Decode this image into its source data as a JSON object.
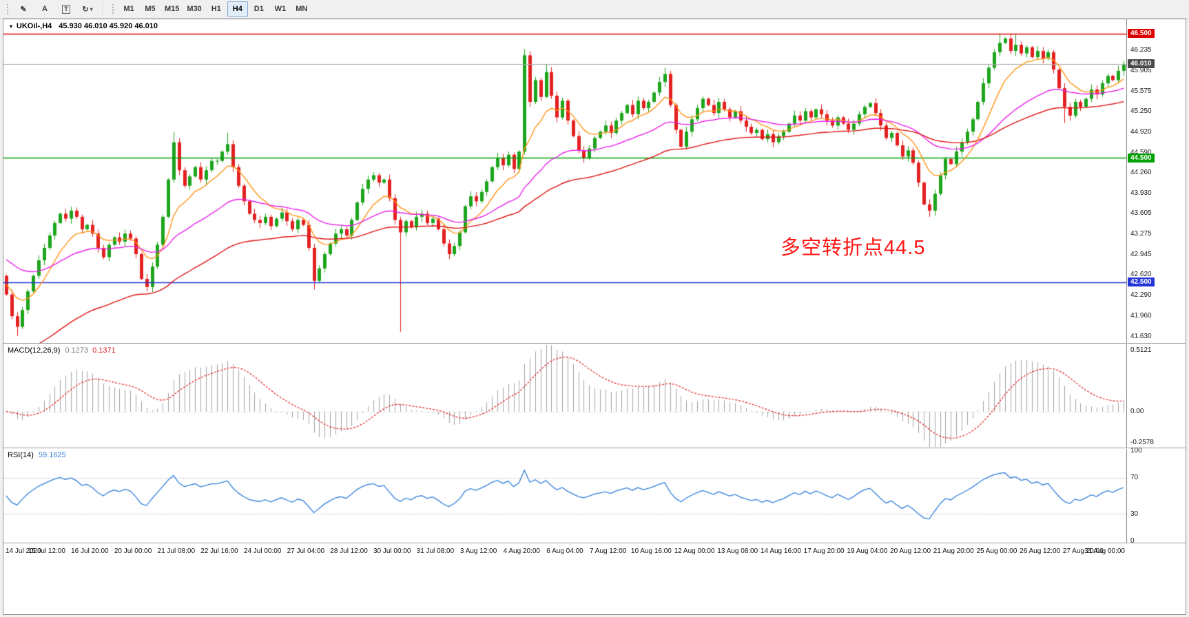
{
  "toolbar": {
    "tools": [
      {
        "id": "draw-tool",
        "icon_name": "pencil-icon",
        "glyph": "✎"
      },
      {
        "id": "text-tool",
        "icon_name": "text-label-icon",
        "glyph": "A"
      },
      {
        "id": "text-frame-tool",
        "icon_name": "text-frame-icon",
        "glyph": "T",
        "boxed": true
      },
      {
        "id": "cycle-tool",
        "icon_name": "cycle-icon",
        "glyph": "↻",
        "caret": "▾"
      }
    ],
    "timeframes": [
      "M1",
      "M5",
      "M15",
      "M30",
      "H1",
      "H4",
      "D1",
      "W1",
      "MN"
    ],
    "active_timeframe": "H4"
  },
  "chart": {
    "symbol": "UKOil-,H4",
    "ohlc": "45.930 46.010 45.920 46.010",
    "annotation": {
      "text": "多空转折点44.5",
      "color": "#ff1414"
    }
  },
  "price_axis": {
    "min": 41.52,
    "max": 46.73,
    "ticks": [
      46.235,
      45.905,
      45.575,
      45.25,
      44.92,
      44.59,
      44.26,
      43.93,
      43.605,
      43.275,
      42.945,
      42.62,
      42.29,
      41.96,
      41.63
    ],
    "special": [
      {
        "value": 46.5,
        "label": "46.500",
        "bg": "#dd0000",
        "fg": "#ffffff",
        "line": "#dd0000",
        "lw": 1.6
      },
      {
        "value": 46.01,
        "label": "46.010",
        "bg": "#4a4a4a",
        "fg": "#ffffff",
        "line": "#a8a8a8",
        "lw": 1.0
      },
      {
        "value": 44.5,
        "label": "44.500",
        "bg": "#00a000",
        "fg": "#ffffff",
        "line": "#00a000",
        "lw": 1.6
      },
      {
        "value": 42.5,
        "label": "42.500",
        "bg": "#2335d8",
        "fg": "#ffffff",
        "line": "#2335d8",
        "lw": 1.6
      }
    ]
  },
  "time_axis": {
    "bars_per_label": 8,
    "labels": [
      "14 Jul 2020",
      "15 Jul 12:00",
      "16 Jul 20:00",
      "20 Jul 00:00",
      "21 Jul 08:00",
      "22 Jul 16:00",
      "24 Jul 00:00",
      "27 Jul 04:00",
      "28 Jul 12:00",
      "30 Jul 00:00",
      "31 Jul 08:00",
      "3 Aug 12:00",
      "4 Aug 20:00",
      "6 Aug 04:00",
      "7 Aug 12:00",
      "10 Aug 16:00",
      "12 Aug 00:00",
      "13 Aug 08:00",
      "14 Aug 16:00",
      "17 Aug 20:00",
      "19 Aug 04:00",
      "20 Aug 12:00",
      "21 Aug 20:00",
      "25 Aug 00:00",
      "26 Aug 12:00",
      "27 Aug 20:00",
      "31 Aug 00:00"
    ]
  },
  "chart_data": {
    "type": "candlestick",
    "symbol": "UKOil-",
    "period": "H4",
    "up_color": "#1ca41c",
    "down_color": "#e22020",
    "first_open": 42.6,
    "closes": [
      42.3,
      41.95,
      41.78,
      42.05,
      42.35,
      42.6,
      42.85,
      43.05,
      43.25,
      43.45,
      43.6,
      43.52,
      43.65,
      43.55,
      43.35,
      43.42,
      43.28,
      43.05,
      42.9,
      43.1,
      43.22,
      43.15,
      43.28,
      43.2,
      42.95,
      42.55,
      42.42,
      42.75,
      43.1,
      43.55,
      44.15,
      44.75,
      44.3,
      44.05,
      44.2,
      44.35,
      44.15,
      44.3,
      44.45,
      44.45,
      44.6,
      44.72,
      44.35,
      44.05,
      43.8,
      43.6,
      43.5,
      43.45,
      43.55,
      43.4,
      43.52,
      43.62,
      43.48,
      43.35,
      43.5,
      43.42,
      43.05,
      42.52,
      42.72,
      42.95,
      43.12,
      43.28,
      43.35,
      43.25,
      43.5,
      43.78,
      44.0,
      44.15,
      44.22,
      44.1,
      44.15,
      43.85,
      43.5,
      43.3,
      43.48,
      43.38,
      43.55,
      43.6,
      43.45,
      43.52,
      43.35,
      43.12,
      42.95,
      43.08,
      43.3,
      43.72,
      43.88,
      43.8,
      43.95,
      44.12,
      44.35,
      44.5,
      44.38,
      44.55,
      44.32,
      44.6,
      46.15,
      45.4,
      45.75,
      45.48,
      45.88,
      45.5,
      45.15,
      45.42,
      45.1,
      44.85,
      44.62,
      44.5,
      44.65,
      44.82,
      44.92,
      45.02,
      44.9,
      45.1,
      45.22,
      45.35,
      45.2,
      45.42,
      45.3,
      45.4,
      45.55,
      45.72,
      45.85,
      45.35,
      44.95,
      44.68,
      44.92,
      45.12,
      45.3,
      45.45,
      45.35,
      45.22,
      45.4,
      45.28,
      45.15,
      45.25,
      45.1,
      45.0,
      44.9,
      44.95,
      44.8,
      44.88,
      44.75,
      44.85,
      44.92,
      45.05,
      45.18,
      45.1,
      45.25,
      45.15,
      45.28,
      45.2,
      45.1,
      45.02,
      45.15,
      45.05,
      44.95,
      45.05,
      45.2,
      45.32,
      45.38,
      45.22,
      45.02,
      44.82,
      44.9,
      44.7,
      44.52,
      44.62,
      44.42,
      44.1,
      43.75,
      43.65,
      43.92,
      44.22,
      44.48,
      44.4,
      44.6,
      44.75,
      44.92,
      45.12,
      45.4,
      45.7,
      45.95,
      46.2,
      46.35,
      46.42,
      46.22,
      46.32,
      46.18,
      46.28,
      46.12,
      46.22,
      46.1,
      46.2,
      45.92,
      45.62,
      45.32,
      45.18,
      45.4,
      45.32,
      45.45,
      45.6,
      45.52,
      45.7,
      45.82,
      45.75,
      45.9,
      46.01
    ],
    "wick_overrides": {
      "2": {
        "low": 41.63
      },
      "26": {
        "low": 42.35
      },
      "31": {
        "high": 44.92
      },
      "41": {
        "high": 44.9
      },
      "57": {
        "low": 42.38
      },
      "73": {
        "low": 41.7
      },
      "96": {
        "high": 46.25
      },
      "100": {
        "high": 46.0
      },
      "122": {
        "high": 45.95
      },
      "171": {
        "low": 43.55
      },
      "184": {
        "high": 46.5
      },
      "187": {
        "high": 46.49
      },
      "196": {
        "low": 45.06
      },
      "207": {
        "high": 46.06
      }
    },
    "mas": [
      {
        "period": 9,
        "seed": 42.5,
        "color": "#ff9416"
      },
      {
        "period": 30,
        "seed": 42.9,
        "color": "#e81ee8"
      },
      {
        "period": 60,
        "seed": 41.3,
        "color": "#e01010"
      }
    ]
  },
  "macd": {
    "label": "MACD(12,26,9)",
    "value_main": "0.1273",
    "value_signal": "0.1371",
    "fast": 12,
    "slow": 26,
    "signal": 9,
    "scale_labels": [
      "0.5121",
      "0.00",
      "-0.2578"
    ],
    "scale_min": -0.3,
    "scale_max": 0.56,
    "hist_color": "#a0a0a0",
    "signal_color": "#e02020"
  },
  "rsi": {
    "label": "RSI(14)",
    "value": "59.1625",
    "period": 14,
    "color": "#2f7ed8",
    "levels": [
      70,
      30
    ],
    "scale_labels": [
      "100",
      "70",
      "30",
      "0"
    ],
    "scale_min": -2,
    "scale_max": 102
  }
}
